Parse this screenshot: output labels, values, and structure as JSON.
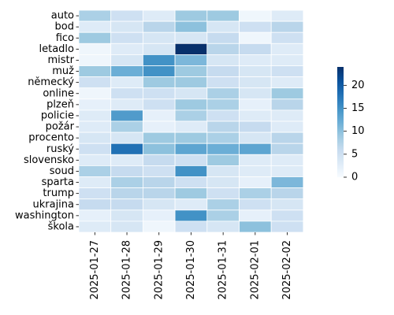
{
  "chart_data": {
    "type": "heatmap",
    "title": "",
    "xlabel": "",
    "ylabel": "",
    "x_categories": [
      "2025-01-27",
      "2025-01-28",
      "2025-01-29",
      "2025-01-30",
      "2025-01-31",
      "2025-02-01",
      "2025-02-02"
    ],
    "y_categories": [
      "auto",
      "bod",
      "fico",
      "letadlo",
      "mistr",
      "muž",
      "německý",
      "online",
      "plzeň",
      "policie",
      "požár",
      "procento",
      "ruský",
      "slovensko",
      "soud",
      "sparta",
      "trump",
      "ukrajina",
      "washington",
      "škola"
    ],
    "values": [
      [
        8,
        5,
        3,
        9,
        9,
        1,
        3
      ],
      [
        3,
        4,
        7,
        10,
        4,
        5,
        7
      ],
      [
        9,
        5,
        4,
        4,
        6,
        1,
        5
      ],
      [
        1,
        3,
        4,
        24,
        7,
        6,
        3
      ],
      [
        1,
        4,
        15,
        11,
        4,
        3,
        3
      ],
      [
        9,
        12,
        15,
        9,
        6,
        4,
        5
      ],
      [
        5,
        3,
        9,
        9,
        5,
        4,
        3
      ],
      [
        1,
        5,
        5,
        4,
        8,
        4,
        9
      ],
      [
        2,
        3,
        5,
        9,
        8,
        2,
        7
      ],
      [
        3,
        14,
        2,
        8,
        5,
        3,
        3
      ],
      [
        3,
        8,
        2,
        3,
        7,
        6,
        3
      ],
      [
        4,
        4,
        9,
        9,
        8,
        4,
        7
      ],
      [
        5,
        18,
        10,
        13,
        12,
        13,
        7
      ],
      [
        3,
        3,
        6,
        5,
        9,
        3,
        3
      ],
      [
        8,
        6,
        5,
        15,
        4,
        3,
        3
      ],
      [
        3,
        8,
        7,
        5,
        4,
        2,
        11
      ],
      [
        5,
        7,
        7,
        9,
        5,
        8,
        7
      ],
      [
        6,
        6,
        4,
        3,
        8,
        5,
        4
      ],
      [
        2,
        4,
        2,
        15,
        8,
        2,
        5
      ],
      [
        3,
        4,
        1,
        5,
        4,
        10,
        5
      ]
    ],
    "colorbar": {
      "min": 0,
      "max": 24,
      "ticks": [
        0,
        5,
        10,
        15,
        20
      ]
    },
    "colormap": "Blues",
    "grid": false,
    "legend": "colorbar-right"
  }
}
